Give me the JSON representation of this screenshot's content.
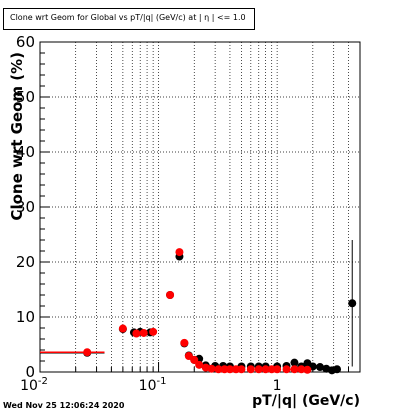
{
  "title": "Clone wrt Geom for Global vs pT/|q| (GeV/c) at | η | <= 1.0",
  "timestamp": "Wed Nov 25 12:06:24 2020",
  "colors": {
    "series_black": "#000000",
    "series_red": "#ff0000",
    "grid": "#000000",
    "background": "#ffffff"
  },
  "chart_data": {
    "type": "scatter",
    "title": "Clone wrt Geom for Global vs pT/|q| (GeV/c) at | η | <= 1.0",
    "xlabel": "pT/|q| (GeV/c)",
    "ylabel": "Clone wrt Geom (%)",
    "xscale": "log",
    "xlim": [
      0.01,
      5
    ],
    "ylim": [
      0,
      60
    ],
    "x_tick_labels": [
      "10^-2",
      "10^-1",
      "1"
    ],
    "y_tick_labels": [
      "0",
      "10",
      "20",
      "30",
      "40",
      "50",
      "60"
    ],
    "grid": true,
    "series": [
      {
        "color": "#000000",
        "points": [
          {
            "x": 0.025,
            "y": 3.5,
            "xerr_lo": 0.015,
            "xerr_hi": 0.01
          },
          {
            "x": 0.05,
            "y": 7.8
          },
          {
            "x": 0.062,
            "y": 7.2
          },
          {
            "x": 0.07,
            "y": 7.3
          },
          {
            "x": 0.085,
            "y": 7.2
          },
          {
            "x": 0.125,
            "y": 14.0
          },
          {
            "x": 0.15,
            "y": 21.0
          },
          {
            "x": 0.165,
            "y": 5.2
          },
          {
            "x": 0.18,
            "y": 3.0
          },
          {
            "x": 0.2,
            "y": 2.2
          },
          {
            "x": 0.22,
            "y": 2.4
          },
          {
            "x": 0.25,
            "y": 1.2
          },
          {
            "x": 0.3,
            "y": 1.1
          },
          {
            "x": 0.35,
            "y": 1.1
          },
          {
            "x": 0.4,
            "y": 1.0
          },
          {
            "x": 0.5,
            "y": 1.0
          },
          {
            "x": 0.6,
            "y": 1.0
          },
          {
            "x": 0.7,
            "y": 1.0
          },
          {
            "x": 0.8,
            "y": 1.0
          },
          {
            "x": 1.0,
            "y": 1.0
          },
          {
            "x": 1.2,
            "y": 1.1
          },
          {
            "x": 1.4,
            "y": 1.7
          },
          {
            "x": 1.6,
            "y": 1.0
          },
          {
            "x": 1.8,
            "y": 1.6
          },
          {
            "x": 2.0,
            "y": 1.0
          },
          {
            "x": 2.3,
            "y": 0.9
          },
          {
            "x": 2.6,
            "y": 0.6
          },
          {
            "x": 2.9,
            "y": 0.3
          },
          {
            "x": 3.2,
            "y": 0.5
          },
          {
            "x": 4.3,
            "y": 12.5,
            "yerr": 11.5
          }
        ]
      },
      {
        "color": "#ff0000",
        "points": [
          {
            "x": 0.025,
            "y": 3.6,
            "xerr_lo": 0.015,
            "xerr_hi": 0.01
          },
          {
            "x": 0.05,
            "y": 7.9
          },
          {
            "x": 0.065,
            "y": 7.0
          },
          {
            "x": 0.075,
            "y": 7.1
          },
          {
            "x": 0.09,
            "y": 7.3
          },
          {
            "x": 0.125,
            "y": 14.0
          },
          {
            "x": 0.15,
            "y": 21.8
          },
          {
            "x": 0.165,
            "y": 5.3
          },
          {
            "x": 0.18,
            "y": 2.9
          },
          {
            "x": 0.2,
            "y": 2.2
          },
          {
            "x": 0.22,
            "y": 1.3
          },
          {
            "x": 0.25,
            "y": 0.8
          },
          {
            "x": 0.28,
            "y": 0.6
          },
          {
            "x": 0.32,
            "y": 0.5
          },
          {
            "x": 0.36,
            "y": 0.5
          },
          {
            "x": 0.4,
            "y": 0.5
          },
          {
            "x": 0.45,
            "y": 0.5
          },
          {
            "x": 0.5,
            "y": 0.5
          },
          {
            "x": 0.6,
            "y": 0.5
          },
          {
            "x": 0.7,
            "y": 0.5
          },
          {
            "x": 0.8,
            "y": 0.5
          },
          {
            "x": 0.9,
            "y": 0.5
          },
          {
            "x": 1.0,
            "y": 0.5
          },
          {
            "x": 1.2,
            "y": 0.5
          },
          {
            "x": 1.4,
            "y": 0.5
          },
          {
            "x": 1.6,
            "y": 0.5
          },
          {
            "x": 1.8,
            "y": 0.4
          }
        ]
      }
    ]
  }
}
